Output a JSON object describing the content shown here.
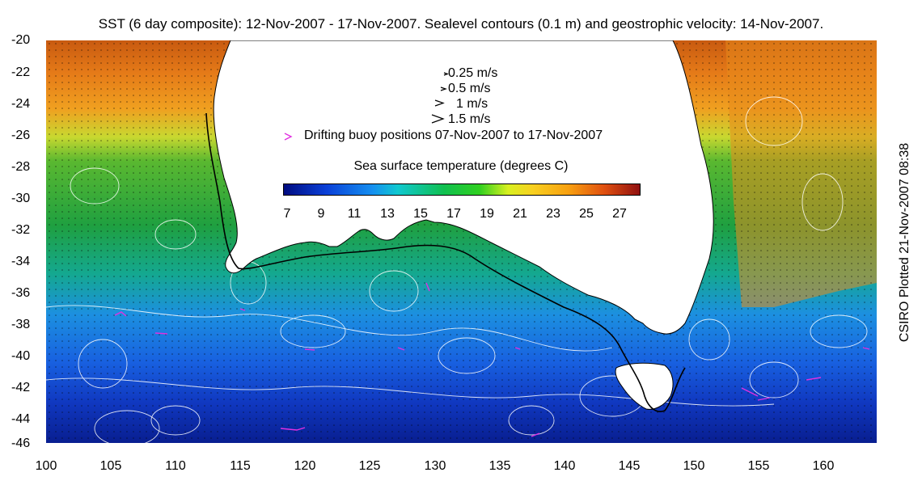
{
  "title": "SST (6 day composite): 12-Nov-2007 - 17-Nov-2007. Sealevel contours (0.1 m) and geostrophic velocity: 14-Nov-2007.",
  "axes": {
    "y_ticks": [
      "-20",
      "-22",
      "-24",
      "-26",
      "-28",
      "-30",
      "-32",
      "-34",
      "-36",
      "-38",
      "-40",
      "-42",
      "-44",
      "-46"
    ],
    "x_ticks": [
      "100",
      "105",
      "110",
      "115",
      "120",
      "125",
      "130",
      "135",
      "140",
      "145",
      "150",
      "155",
      "160"
    ]
  },
  "velocity_legend": [
    {
      "label": "0.25 m/s",
      "speed": 0.25
    },
    {
      "label": "0.5 m/s",
      "speed": 0.5
    },
    {
      "label": "1 m/s",
      "speed": 1
    },
    {
      "label": "1.5 m/s",
      "speed": 1.5
    }
  ],
  "buoy_legend": "Drifting buoy positions 07-Nov-2007 to 17-Nov-2007",
  "colorbar": {
    "title": "Sea surface temperature (degrees C)",
    "ticks": [
      "7",
      "9",
      "11",
      "13",
      "15",
      "17",
      "19",
      "21",
      "23",
      "25",
      "27"
    ]
  },
  "side_label": "CSIRO Plotted 21-Nov-2007 08:38",
  "colors": {
    "buoy": "#e030e0",
    "contour": "#ffffff",
    "land": "#ffffff",
    "warm": "#e86a10",
    "cold": "#0a30c0"
  }
}
